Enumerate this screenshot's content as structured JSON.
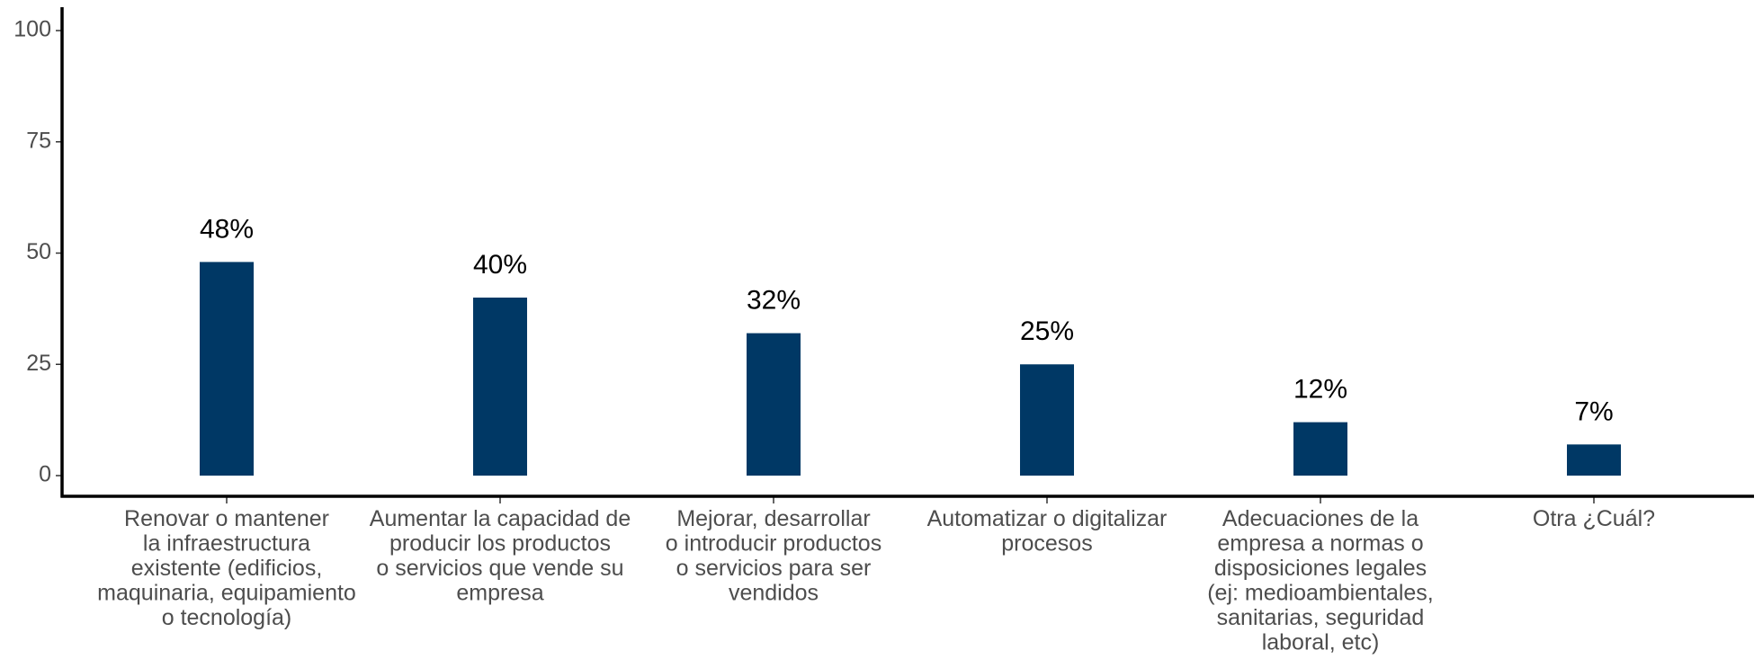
{
  "chart_data": {
    "type": "bar",
    "categories": [
      [
        "Renovar o mantener",
        "la infraestructura",
        "existente (edificios,",
        "maquinaria, equipamiento",
        "o tecnología)"
      ],
      [
        "Aumentar la capacidad de",
        "producir los productos",
        "o servicios que vende su",
        "empresa"
      ],
      [
        "Mejorar, desarrollar",
        "o introducir productos",
        "o servicios para ser",
        "vendidos"
      ],
      [
        "Automatizar o digitalizar",
        "procesos"
      ],
      [
        "Adecuaciones de la",
        "empresa a normas o",
        "disposiciones legales",
        "(ej: medioambientales,",
        "sanitarias, seguridad",
        "laboral, etc)"
      ],
      [
        "Otra ¿Cuál?"
      ]
    ],
    "values": [
      48,
      40,
      32,
      25,
      12,
      7
    ],
    "value_labels": [
      "48%",
      "40%",
      "32%",
      "25%",
      "12%",
      "7%"
    ],
    "color": "#003865",
    "ylim": [
      0,
      100
    ],
    "yticks": [
      0,
      25,
      50,
      75,
      100
    ],
    "grid": false
  }
}
